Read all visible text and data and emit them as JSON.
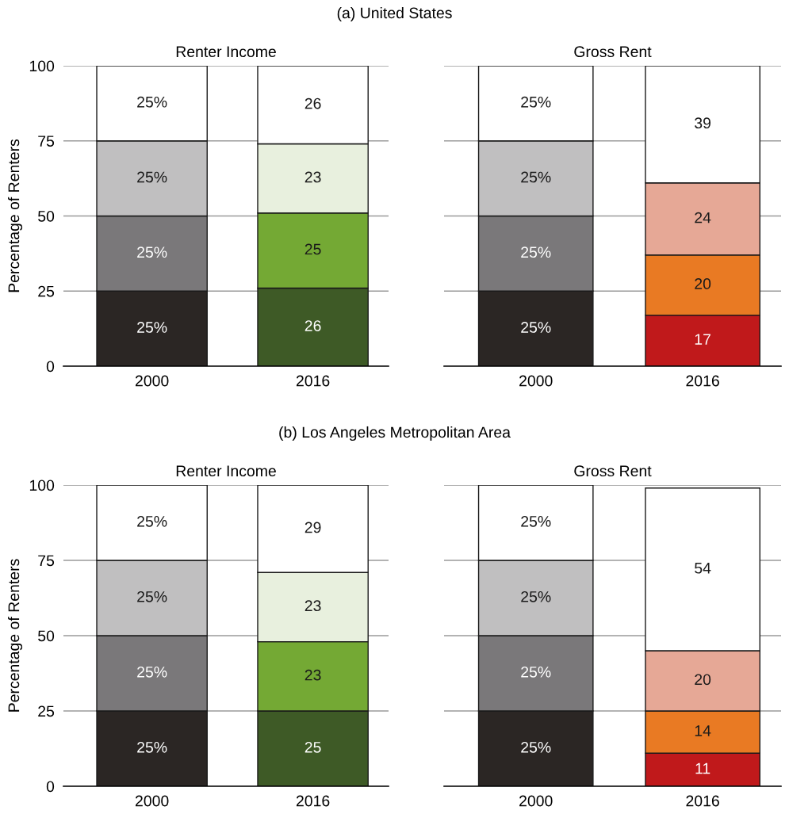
{
  "chart_data": [
    {
      "type": "bar",
      "stacked": true,
      "title": "Renter Income",
      "ylabel": "Percentage of Renters",
      "annotations": [
        "(a) United States"
      ],
      "categories": [
        "2000",
        "2016"
      ],
      "ylim": [
        0,
        100
      ],
      "yticks": [
        0,
        25,
        50,
        75,
        100
      ],
      "grid": "y",
      "series": [
        {
          "colors": [
            "#2b2624",
            "#3e5a26"
          ],
          "values": [
            25,
            26
          ],
          "value_labels": [
            "25%",
            "26"
          ]
        },
        {
          "colors": [
            "#7a787a",
            "#74a934"
          ],
          "values": [
            25,
            25
          ],
          "value_labels": [
            "25%",
            "25"
          ]
        },
        {
          "colors": [
            "#c0bfc0",
            "#e8f0de"
          ],
          "values": [
            25,
            23
          ],
          "value_labels": [
            "25%",
            "23"
          ]
        },
        {
          "colors": [
            "#ffffff",
            "#ffffff"
          ],
          "values": [
            25,
            26
          ],
          "value_labels": [
            "25%",
            "26"
          ]
        }
      ]
    },
    {
      "type": "bar",
      "stacked": true,
      "title": "Gross Rent",
      "categories": [
        "2000",
        "2016"
      ],
      "ylim": [
        0,
        100
      ],
      "yticks": [
        0,
        25,
        50,
        75,
        100
      ],
      "grid": "y",
      "tick_labels": "x",
      "series": [
        {
          "colors": [
            "#2b2624",
            "#c0191b"
          ],
          "values": [
            25,
            17
          ],
          "value_labels": [
            "25%",
            "17"
          ]
        },
        {
          "colors": [
            "#7a787a",
            "#e97a23"
          ],
          "values": [
            25,
            20
          ],
          "value_labels": [
            "25%",
            "20"
          ]
        },
        {
          "colors": [
            "#c0bfc0",
            "#e6a896"
          ],
          "values": [
            25,
            24
          ],
          "value_labels": [
            "25%",
            "24"
          ]
        },
        {
          "colors": [
            "#ffffff",
            "#ffffff"
          ],
          "values": [
            25,
            39
          ],
          "value_labels": [
            "25%",
            "39"
          ]
        }
      ]
    },
    {
      "type": "bar",
      "stacked": true,
      "title": "Renter Income",
      "ylabel": "Percentage of Renters",
      "annotations": [
        "(b) Los Angeles Metropolitan Area"
      ],
      "categories": [
        "2000",
        "2016"
      ],
      "ylim": [
        0,
        100
      ],
      "yticks": [
        0,
        25,
        50,
        75,
        100
      ],
      "grid": "y",
      "series": [
        {
          "colors": [
            "#2b2624",
            "#3e5a26"
          ],
          "values": [
            25,
            25
          ],
          "value_labels": [
            "25%",
            "25"
          ]
        },
        {
          "colors": [
            "#7a787a",
            "#74a934"
          ],
          "values": [
            25,
            23
          ],
          "value_labels": [
            "25%",
            "23"
          ]
        },
        {
          "colors": [
            "#c0bfc0",
            "#e8f0de"
          ],
          "values": [
            25,
            23
          ],
          "value_labels": [
            "25%",
            "23"
          ]
        },
        {
          "colors": [
            "#ffffff",
            "#ffffff"
          ],
          "values": [
            25,
            29
          ],
          "value_labels": [
            "25%",
            "29"
          ]
        }
      ]
    },
    {
      "type": "bar",
      "stacked": true,
      "title": "Gross Rent",
      "categories": [
        "2000",
        "2016"
      ],
      "ylim": [
        0,
        100
      ],
      "yticks": [
        0,
        25,
        50,
        75,
        100
      ],
      "grid": "y",
      "tick_labels": "x",
      "series": [
        {
          "colors": [
            "#2b2624",
            "#c0191b"
          ],
          "values": [
            25,
            11
          ],
          "value_labels": [
            "25%",
            "11"
          ]
        },
        {
          "colors": [
            "#7a787a",
            "#e97a23"
          ],
          "values": [
            25,
            14
          ],
          "value_labels": [
            "25%",
            "14"
          ]
        },
        {
          "colors": [
            "#c0bfc0",
            "#e6a896"
          ],
          "values": [
            25,
            20
          ],
          "value_labels": [
            "25%",
            "20"
          ]
        },
        {
          "colors": [
            "#ffffff",
            "#ffffff"
          ],
          "values": [
            25,
            54
          ],
          "value_labels": [
            "25%",
            "54"
          ]
        }
      ]
    }
  ]
}
